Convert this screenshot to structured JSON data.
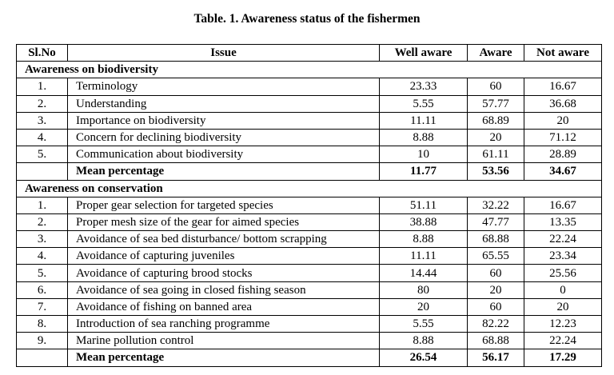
{
  "title": "Table. 1. Awareness status of the fishermen",
  "headers": [
    "Sl.No",
    "Issue",
    "Well aware",
    "Aware",
    "Not aware"
  ],
  "sections": [
    {
      "heading": "Awareness on biodiversity",
      "rows": [
        [
          "1.",
          "Terminology",
          "23.33",
          "60",
          "16.67"
        ],
        [
          "2.",
          "Understanding",
          "5.55",
          "57.77",
          "36.68"
        ],
        [
          "3.",
          "Importance on biodiversity",
          "11.11",
          "68.89",
          "20"
        ],
        [
          "4.",
          "Concern for declining biodiversity",
          "8.88",
          "20",
          "71.12"
        ],
        [
          "5.",
          "Communication about biodiversity",
          "10",
          "61.11",
          "28.89"
        ]
      ],
      "mean": [
        "",
        "Mean percentage",
        "11.77",
        "53.56",
        "34.67"
      ]
    },
    {
      "heading": "Awareness on conservation",
      "rows": [
        [
          "1.",
          "Proper gear selection for targeted species",
          "51.11",
          "32.22",
          "16.67"
        ],
        [
          "2.",
          "Proper mesh size of the gear for aimed species",
          "38.88",
          "47.77",
          "13.35"
        ],
        [
          "3.",
          "Avoidance of sea bed disturbance/ bottom scrapping",
          "8.88",
          "68.88",
          "22.24"
        ],
        [
          "4.",
          "Avoidance of capturing juveniles",
          "11.11",
          "65.55",
          "23.34"
        ],
        [
          "5.",
          "Avoidance of capturing brood stocks",
          "14.44",
          "60",
          "25.56"
        ],
        [
          "6.",
          "Avoidance of sea going in closed fishing season",
          "80",
          "20",
          "0"
        ],
        [
          "7.",
          "Avoidance of fishing on banned area",
          "20",
          "60",
          "20"
        ],
        [
          "8.",
          "Introduction of sea ranching programme",
          "5.55",
          "82.22",
          "12.23"
        ],
        [
          "9.",
          "Marine pollution control",
          "8.88",
          "68.88",
          "22.24"
        ]
      ],
      "mean": [
        "",
        "Mean percentage",
        "26.54",
        "56.17",
        "17.29"
      ]
    }
  ]
}
